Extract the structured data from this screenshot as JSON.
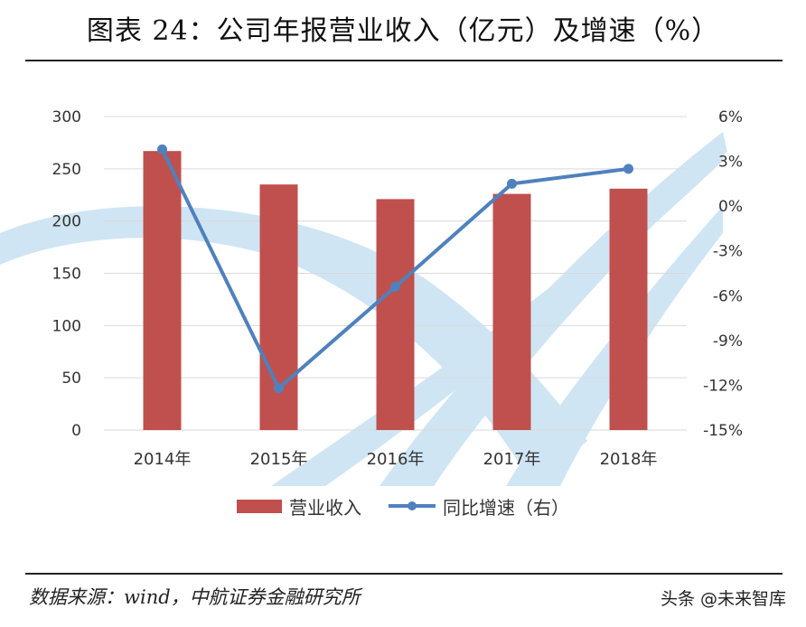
{
  "header": {
    "title": "图表 24：公司年报营业收入（亿元）及增速（%）"
  },
  "footer": {
    "source": "数据来源：wind，中航证券金融研究所",
    "watermark": "头条 @未来智库"
  },
  "colors": {
    "bar": "#c0504d",
    "line": "#4f81bd",
    "background_watermark": "#cfe5f4",
    "grid": "#d9d9d9",
    "axis_text": "#333333"
  },
  "chart_data": {
    "type": "bar",
    "categories": [
      "2014年",
      "2015年",
      "2016年",
      "2017年",
      "2018年"
    ],
    "series": [
      {
        "name": "营业收入",
        "type": "bar",
        "axis": "left",
        "values": [
          267,
          235,
          221,
          226,
          231
        ]
      },
      {
        "name": "同比增速（右）",
        "type": "line",
        "axis": "right",
        "values": [
          3.8,
          -12.2,
          -5.4,
          1.5,
          2.5
        ]
      }
    ],
    "y_left": {
      "min": 0,
      "max": 300,
      "ticks": [
        "0",
        "50",
        "100",
        "150",
        "200",
        "250",
        "300"
      ]
    },
    "y_right": {
      "min": -15,
      "max": 6,
      "ticks": [
        "-15%",
        "-12%",
        "-9%",
        "-6%",
        "-3%",
        "0%",
        "3%",
        "6%"
      ]
    },
    "grid": true,
    "legend_position": "bottom"
  }
}
